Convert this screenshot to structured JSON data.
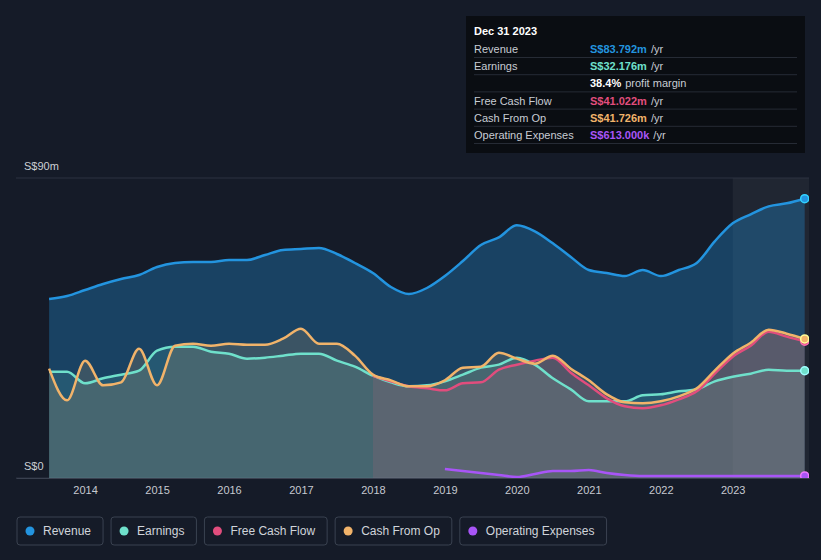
{
  "chart_data": {
    "type": "line",
    "x": [
      2013.5,
      2013.75,
      2014,
      2014.25,
      2014.5,
      2014.75,
      2015,
      2015.25,
      2015.5,
      2015.75,
      2016,
      2016.25,
      2016.5,
      2016.75,
      2017,
      2017.25,
      2017.5,
      2017.75,
      2018,
      2018.25,
      2018.5,
      2018.75,
      2019,
      2019.25,
      2019.5,
      2019.75,
      2020,
      2020.25,
      2020.5,
      2020.75,
      2021,
      2021.25,
      2021.5,
      2021.75,
      2022,
      2022.25,
      2022.5,
      2022.75,
      2023,
      2023.25,
      2023.5,
      2023.75,
      2024
    ],
    "xlim": [
      2013.04,
      2024.06
    ],
    "xticks": [
      2014,
      2015,
      2016,
      2017,
      2018,
      2019,
      2020,
      2021,
      2022,
      2023
    ],
    "ylim": [
      0,
      90
    ],
    "yticks": [
      {
        "value": 0,
        "label": "S$0"
      },
      {
        "value": 90,
        "label": "S$90m"
      }
    ],
    "grid": true,
    "legend": "bottom",
    "series": [
      {
        "name": "Revenue",
        "color": "#2394df",
        "values": [
          53.7,
          54.6,
          56.4,
          58.2,
          59.7,
          60.9,
          63.3,
          64.5,
          64.8,
          64.8,
          65.4,
          65.4,
          66.9,
          68.4,
          68.7,
          69.0,
          67.2,
          64.5,
          61.5,
          57.3,
          55.2,
          57.0,
          60.6,
          65.1,
          69.9,
          72.2,
          75.8,
          74.0,
          70.4,
          66.3,
          62.4,
          61.5,
          60.6,
          62.4,
          60.6,
          62.4,
          64.5,
          71.0,
          76.4,
          79.1,
          81.5,
          82.4,
          83.792
        ]
      },
      {
        "name": "Earnings",
        "color": "#6fe0cb",
        "values": [
          31.9,
          31.9,
          28.4,
          29.9,
          31.0,
          32.2,
          38.2,
          39.4,
          39.4,
          37.9,
          37.3,
          35.8,
          36.1,
          36.7,
          37.3,
          37.3,
          35.2,
          33.4,
          30.7,
          28.7,
          27.5,
          27.8,
          29.0,
          31.0,
          33.1,
          34.0,
          36.1,
          34.0,
          29.9,
          26.6,
          23.0,
          23.0,
          23.0,
          24.8,
          25.1,
          26.0,
          26.6,
          29.0,
          30.4,
          31.3,
          32.5,
          32.2,
          32.176
        ]
      },
      {
        "name": "Free Cash Flow",
        "color": "#e14d7d",
        "values": [
          null,
          null,
          null,
          null,
          null,
          null,
          null,
          null,
          null,
          null,
          null,
          null,
          null,
          null,
          null,
          null,
          null,
          null,
          30.7,
          29.0,
          27.5,
          26.9,
          26.3,
          28.4,
          28.7,
          32.5,
          34.0,
          35.2,
          36.1,
          31.6,
          27.8,
          23.9,
          21.5,
          20.9,
          21.8,
          23.6,
          26.0,
          31.3,
          36.4,
          39.7,
          43.9,
          42.4,
          41.022
        ]
      },
      {
        "name": "Cash From Op",
        "color": "#f1b36a",
        "values": [
          32.8,
          23.3,
          35.2,
          27.8,
          28.7,
          38.8,
          27.8,
          39.7,
          40.3,
          39.7,
          40.3,
          40.0,
          40.0,
          41.8,
          44.8,
          40.3,
          40.3,
          36.7,
          31.0,
          29.3,
          27.5,
          27.5,
          29.3,
          33.1,
          33.4,
          37.6,
          35.8,
          34.3,
          36.7,
          32.8,
          29.3,
          25.1,
          22.7,
          22.4,
          23.0,
          24.5,
          26.9,
          32.2,
          37.3,
          40.6,
          44.5,
          43.3,
          41.726
        ]
      },
      {
        "name": "Operating Expenses",
        "color": "#a855f7",
        "values": [
          null,
          null,
          null,
          null,
          null,
          null,
          null,
          null,
          null,
          null,
          null,
          null,
          null,
          null,
          null,
          null,
          null,
          null,
          null,
          null,
          null,
          null,
          2.7,
          2.1,
          1.5,
          0.9,
          0.3,
          1.2,
          2.1,
          2.1,
          2.4,
          1.5,
          0.9,
          0.6,
          0.6,
          0.6,
          0.6,
          0.6,
          0.6,
          0.6,
          0.6,
          0.6,
          0.613
        ]
      }
    ]
  },
  "tooltip": {
    "date": "Dec 31 2023",
    "rows": [
      {
        "label": "Revenue",
        "value": "S$83.792m",
        "unit": "/yr"
      },
      {
        "label": "Earnings",
        "value": "S$32.176m",
        "unit": "/yr"
      },
      {
        "value": "38.4%",
        "unit": "profit margin"
      },
      {
        "label": "Free Cash Flow",
        "value": "S$41.022m",
        "unit": "/yr"
      },
      {
        "label": "Cash From Op",
        "value": "S$41.726m",
        "unit": "/yr"
      },
      {
        "label": "Operating Expenses",
        "value": "S$613.000k",
        "unit": "/yr"
      }
    ]
  }
}
